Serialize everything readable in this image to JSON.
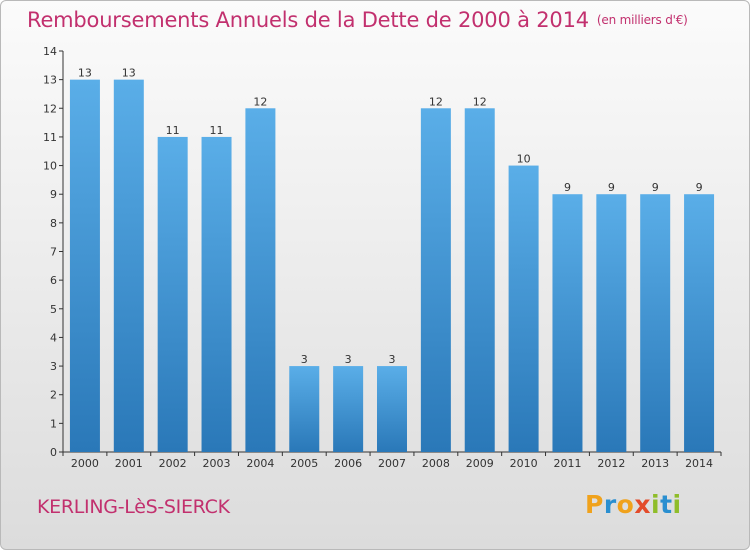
{
  "header": {
    "title": "Remboursements Annuels de la Dette de 2000 à 2014",
    "unit": "(en milliers d'€)"
  },
  "footer": {
    "town": "KERLING-LèS-SIERCK",
    "logo": "Proxiti"
  },
  "colors": {
    "title": "#c2306e",
    "bar_top": "#5aaee8",
    "bar_bottom": "#2a78b8"
  },
  "chart_data": {
    "type": "bar",
    "title": "Remboursements Annuels de la Dette de 2000 à 2014",
    "xlabel": "",
    "ylabel": "",
    "categories": [
      "2000",
      "2001",
      "2002",
      "2003",
      "2004",
      "2005",
      "2006",
      "2007",
      "2008",
      "2009",
      "2010",
      "2011",
      "2012",
      "2013",
      "2014"
    ],
    "values": [
      13,
      13,
      11,
      11,
      12,
      3,
      3,
      3,
      12,
      12,
      10,
      9,
      9,
      9,
      9
    ],
    "ylim": [
      0,
      14
    ],
    "yticks": [
      0,
      1,
      2,
      3,
      4,
      5,
      6,
      7,
      8,
      9,
      10,
      11,
      12,
      13,
      14
    ],
    "grid": false,
    "legend": "none"
  }
}
